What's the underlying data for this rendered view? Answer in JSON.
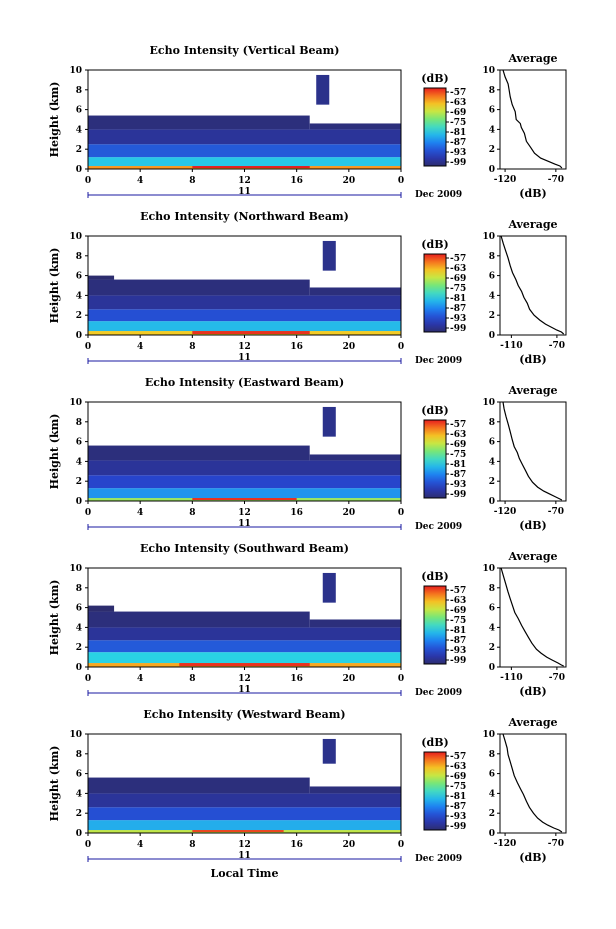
{
  "figure": {
    "x_axis_title": "Local Time",
    "date_label": "Dec 2009",
    "day_label": "11"
  },
  "chart_data": [
    {
      "type": "heatmap",
      "title": "Echo Intensity (Vertical Beam)",
      "xlabel": "",
      "ylabel": "Height (km)",
      "xlim": [
        0,
        24
      ],
      "ylim": [
        0,
        10
      ],
      "xticks": [
        "0",
        "4",
        "8",
        "12",
        "16",
        "20",
        "0"
      ],
      "yticks": [
        "0",
        "2",
        "4",
        "6",
        "8",
        "10"
      ],
      "colorbar": {
        "label": "(dB)",
        "ticks": [
          "-57",
          "-63",
          "-69",
          "-75",
          "-81",
          "-87",
          "-93",
          "-99"
        ]
      },
      "bands": [
        {
          "x0": 0,
          "x1": 24,
          "y0": 0.0,
          "y1": 0.3,
          "value": -63
        },
        {
          "x0": 8,
          "x1": 17,
          "y0": 0.1,
          "y1": 0.6,
          "value": -57
        },
        {
          "x0": 0,
          "x1": 24,
          "y0": 0.3,
          "y1": 1.2,
          "value": -81
        },
        {
          "x0": 0,
          "x1": 24,
          "y0": 1.2,
          "y1": 2.5,
          "value": -90
        },
        {
          "x0": 0,
          "x1": 24,
          "y0": 2.5,
          "y1": 4.0,
          "value": -96
        },
        {
          "x0": 0,
          "x1": 17,
          "y0": 4.0,
          "y1": 5.4,
          "value": -98
        },
        {
          "x0": 17,
          "x1": 24,
          "y0": 4.0,
          "y1": 4.6,
          "value": -98
        },
        {
          "x0": 17.5,
          "x1": 18.5,
          "y0": 6.5,
          "y1": 9.5,
          "value": -97
        }
      ],
      "profile": {
        "title": "Average",
        "xlabel": "(dB)",
        "xticks": [
          -120,
          -70
        ],
        "xlim": [
          -125,
          -60
        ],
        "ylim": [
          0,
          10
        ],
        "yticks": [
          "0",
          "2",
          "4",
          "6",
          "8",
          "10"
        ],
        "x": [
          -122,
          -120,
          -117,
          -116,
          -115,
          -113,
          -110,
          -109,
          -105,
          -104,
          -101,
          -99,
          -95,
          -91,
          -85,
          -78,
          -71,
          -66,
          -64
        ],
        "y": [
          10,
          9.3,
          8.6,
          8.0,
          7.3,
          6.5,
          5.8,
          5.0,
          4.6,
          4.2,
          3.6,
          2.8,
          2.2,
          1.6,
          1.1,
          0.8,
          0.5,
          0.3,
          0.1
        ]
      }
    },
    {
      "type": "heatmap",
      "title": "Echo Intensity (Northward Beam)",
      "xlabel": "",
      "ylabel": "Height (km)",
      "xlim": [
        0,
        24
      ],
      "ylim": [
        0,
        10
      ],
      "xticks": [
        "0",
        "4",
        "8",
        "12",
        "16",
        "20",
        "0"
      ],
      "yticks": [
        "0",
        "2",
        "4",
        "6",
        "8",
        "10"
      ],
      "colorbar": {
        "label": "(dB)",
        "ticks": [
          "-57",
          "-63",
          "-69",
          "-75",
          "-81",
          "-87",
          "-93",
          "-99"
        ]
      },
      "bands": [
        {
          "x0": 0,
          "x1": 24,
          "y0": 0.0,
          "y1": 0.4,
          "value": -66
        },
        {
          "x0": 8,
          "x1": 17,
          "y0": 0.1,
          "y1": 0.6,
          "value": -58
        },
        {
          "x0": 0,
          "x1": 24,
          "y0": 0.4,
          "y1": 1.4,
          "value": -82
        },
        {
          "x0": 0,
          "x1": 24,
          "y0": 1.4,
          "y1": 2.6,
          "value": -91
        },
        {
          "x0": 0,
          "x1": 24,
          "y0": 2.6,
          "y1": 4.0,
          "value": -96
        },
        {
          "x0": 0,
          "x1": 17,
          "y0": 4.0,
          "y1": 5.6,
          "value": -98
        },
        {
          "x0": 17,
          "x1": 24,
          "y0": 4.0,
          "y1": 4.8,
          "value": -98
        },
        {
          "x0": 0,
          "x1": 2,
          "y0": 5.6,
          "y1": 6.0,
          "value": -99
        },
        {
          "x0": 18,
          "x1": 19,
          "y0": 6.5,
          "y1": 9.5,
          "value": -97
        }
      ],
      "profile": {
        "title": "Average",
        "xlabel": "(dB)",
        "xticks": [
          -110,
          -70
        ],
        "xlim": [
          -120,
          -62
        ],
        "ylim": [
          0,
          10
        ],
        "yticks": [
          "0",
          "2",
          "4",
          "6",
          "8",
          "10"
        ],
        "x": [
          -119,
          -117,
          -115,
          -113,
          -111,
          -109,
          -106,
          -104,
          -101,
          -99,
          -96,
          -94,
          -90,
          -85,
          -80,
          -75,
          -70,
          -66,
          -64
        ],
        "y": [
          10,
          9.2,
          8.5,
          7.8,
          7.0,
          6.3,
          5.6,
          5.0,
          4.4,
          3.8,
          3.2,
          2.6,
          2.0,
          1.5,
          1.1,
          0.8,
          0.5,
          0.3,
          0.1
        ]
      }
    },
    {
      "type": "heatmap",
      "title": "Echo Intensity (Eastward Beam)",
      "xlabel": "",
      "ylabel": "Height (km)",
      "xlim": [
        0,
        24
      ],
      "ylim": [
        0,
        10
      ],
      "xticks": [
        "0",
        "4",
        "8",
        "12",
        "16",
        "20",
        "0"
      ],
      "yticks": [
        "0",
        "2",
        "4",
        "6",
        "8",
        "10"
      ],
      "colorbar": {
        "label": "(dB)",
        "ticks": [
          "-57",
          "-63",
          "-69",
          "-75",
          "-81",
          "-87",
          "-93",
          "-99"
        ]
      },
      "bands": [
        {
          "x0": 0,
          "x1": 24,
          "y0": 0.0,
          "y1": 0.3,
          "value": -72
        },
        {
          "x0": 8,
          "x1": 16,
          "y0": 0.1,
          "y1": 0.5,
          "value": -58
        },
        {
          "x0": 0,
          "x1": 24,
          "y0": 0.3,
          "y1": 1.3,
          "value": -85
        },
        {
          "x0": 0,
          "x1": 24,
          "y0": 1.3,
          "y1": 2.6,
          "value": -92
        },
        {
          "x0": 0,
          "x1": 24,
          "y0": 2.6,
          "y1": 4.1,
          "value": -96
        },
        {
          "x0": 0,
          "x1": 17,
          "y0": 4.1,
          "y1": 5.6,
          "value": -98
        },
        {
          "x0": 17,
          "x1": 24,
          "y0": 4.1,
          "y1": 4.7,
          "value": -98
        },
        {
          "x0": 18,
          "x1": 19,
          "y0": 6.5,
          "y1": 9.5,
          "value": -97
        }
      ],
      "profile": {
        "title": "Average",
        "xlabel": "(dB)",
        "xticks": [
          -120,
          -70
        ],
        "xlim": [
          -125,
          -60
        ],
        "ylim": [
          0,
          10
        ],
        "yticks": [
          "0",
          "2",
          "4",
          "6",
          "8",
          "10"
        ],
        "x": [
          -122,
          -121,
          -119,
          -117,
          -115,
          -113,
          -111,
          -108,
          -106,
          -103,
          -100,
          -97,
          -93,
          -88,
          -82,
          -76,
          -70,
          -66,
          -64
        ],
        "y": [
          10,
          9.3,
          8.5,
          7.8,
          7.0,
          6.2,
          5.5,
          4.9,
          4.3,
          3.7,
          3.1,
          2.5,
          1.9,
          1.4,
          1.0,
          0.7,
          0.4,
          0.2,
          0.1
        ]
      }
    },
    {
      "type": "heatmap",
      "title": "Echo Intensity (Southward Beam)",
      "xlabel": "",
      "ylabel": "Height (km)",
      "xlim": [
        0,
        24
      ],
      "ylim": [
        0,
        10
      ],
      "xticks": [
        "0",
        "4",
        "8",
        "12",
        "16",
        "20",
        "0"
      ],
      "yticks": [
        "0",
        "2",
        "4",
        "6",
        "8",
        "10"
      ],
      "colorbar": {
        "label": "(dB)",
        "ticks": [
          "-57",
          "-63",
          "-69",
          "-75",
          "-81",
          "-87",
          "-93",
          "-99"
        ]
      },
      "bands": [
        {
          "x0": 0,
          "x1": 24,
          "y0": 0.0,
          "y1": 0.4,
          "value": -64
        },
        {
          "x0": 7,
          "x1": 17,
          "y0": 0.1,
          "y1": 0.7,
          "value": -58
        },
        {
          "x0": 0,
          "x1": 24,
          "y0": 0.4,
          "y1": 1.5,
          "value": -80
        },
        {
          "x0": 0,
          "x1": 24,
          "y0": 1.5,
          "y1": 2.7,
          "value": -90
        },
        {
          "x0": 0,
          "x1": 24,
          "y0": 2.7,
          "y1": 4.0,
          "value": -96
        },
        {
          "x0": 0,
          "x1": 17,
          "y0": 4.0,
          "y1": 5.6,
          "value": -98
        },
        {
          "x0": 17,
          "x1": 24,
          "y0": 4.0,
          "y1": 4.8,
          "value": -98
        },
        {
          "x0": 0,
          "x1": 2,
          "y0": 5.6,
          "y1": 6.2,
          "value": -99
        },
        {
          "x0": 18,
          "x1": 19,
          "y0": 6.5,
          "y1": 9.5,
          "value": -97
        }
      ],
      "profile": {
        "title": "Average",
        "xlabel": "(dB)",
        "xticks": [
          -110,
          -70
        ],
        "xlim": [
          -120,
          -62
        ],
        "ylim": [
          0,
          10
        ],
        "yticks": [
          "0",
          "2",
          "4",
          "6",
          "8",
          "10"
        ],
        "x": [
          -119,
          -117,
          -115,
          -113,
          -111,
          -109,
          -107,
          -104,
          -101,
          -98,
          -95,
          -92,
          -88,
          -84,
          -79,
          -74,
          -69,
          -66,
          -64
        ],
        "y": [
          10,
          9.2,
          8.4,
          7.6,
          6.9,
          6.2,
          5.5,
          4.9,
          4.2,
          3.6,
          3.0,
          2.4,
          1.8,
          1.4,
          1.0,
          0.7,
          0.4,
          0.2,
          0.1
        ]
      }
    },
    {
      "type": "heatmap",
      "title": "Echo Intensity (Westward Beam)",
      "xlabel": "Local Time",
      "ylabel": "Height (km)",
      "xlim": [
        0,
        24
      ],
      "ylim": [
        0,
        10
      ],
      "xticks": [
        "0",
        "4",
        "8",
        "12",
        "16",
        "20",
        "0"
      ],
      "yticks": [
        "0",
        "2",
        "4",
        "6",
        "8",
        "10"
      ],
      "colorbar": {
        "label": "(dB)",
        "ticks": [
          "-57",
          "-63",
          "-69",
          "-75",
          "-81",
          "-87",
          "-93",
          "-99"
        ]
      },
      "bands": [
        {
          "x0": 0,
          "x1": 24,
          "y0": 0.0,
          "y1": 0.3,
          "value": -70
        },
        {
          "x0": 8,
          "x1": 15,
          "y0": 0.1,
          "y1": 0.5,
          "value": -59
        },
        {
          "x0": 0,
          "x1": 24,
          "y0": 0.3,
          "y1": 1.3,
          "value": -83
        },
        {
          "x0": 0,
          "x1": 24,
          "y0": 1.3,
          "y1": 2.6,
          "value": -91
        },
        {
          "x0": 0,
          "x1": 24,
          "y0": 2.6,
          "y1": 4.0,
          "value": -96
        },
        {
          "x0": 0,
          "x1": 17,
          "y0": 4.0,
          "y1": 5.6,
          "value": -98
        },
        {
          "x0": 17,
          "x1": 24,
          "y0": 4.0,
          "y1": 4.7,
          "value": -98
        },
        {
          "x0": 18,
          "x1": 19,
          "y0": 7.0,
          "y1": 9.5,
          "value": -97
        }
      ],
      "profile": {
        "title": "Average",
        "xlabel": "(dB)",
        "xticks": [
          -120,
          -70
        ],
        "xlim": [
          -125,
          -60
        ],
        "ylim": [
          0,
          10
        ],
        "yticks": [
          "0",
          "2",
          "4",
          "6",
          "8",
          "10"
        ],
        "x": [
          -122,
          -120,
          -118,
          -117,
          -115,
          -113,
          -111,
          -108,
          -105,
          -102,
          -99,
          -96,
          -92,
          -88,
          -83,
          -78,
          -72,
          -67,
          -64
        ],
        "y": [
          10,
          9.3,
          8.6,
          7.9,
          7.2,
          6.5,
          5.8,
          5.1,
          4.5,
          3.9,
          3.2,
          2.6,
          2.0,
          1.5,
          1.1,
          0.8,
          0.5,
          0.3,
          0.1
        ]
      }
    }
  ]
}
